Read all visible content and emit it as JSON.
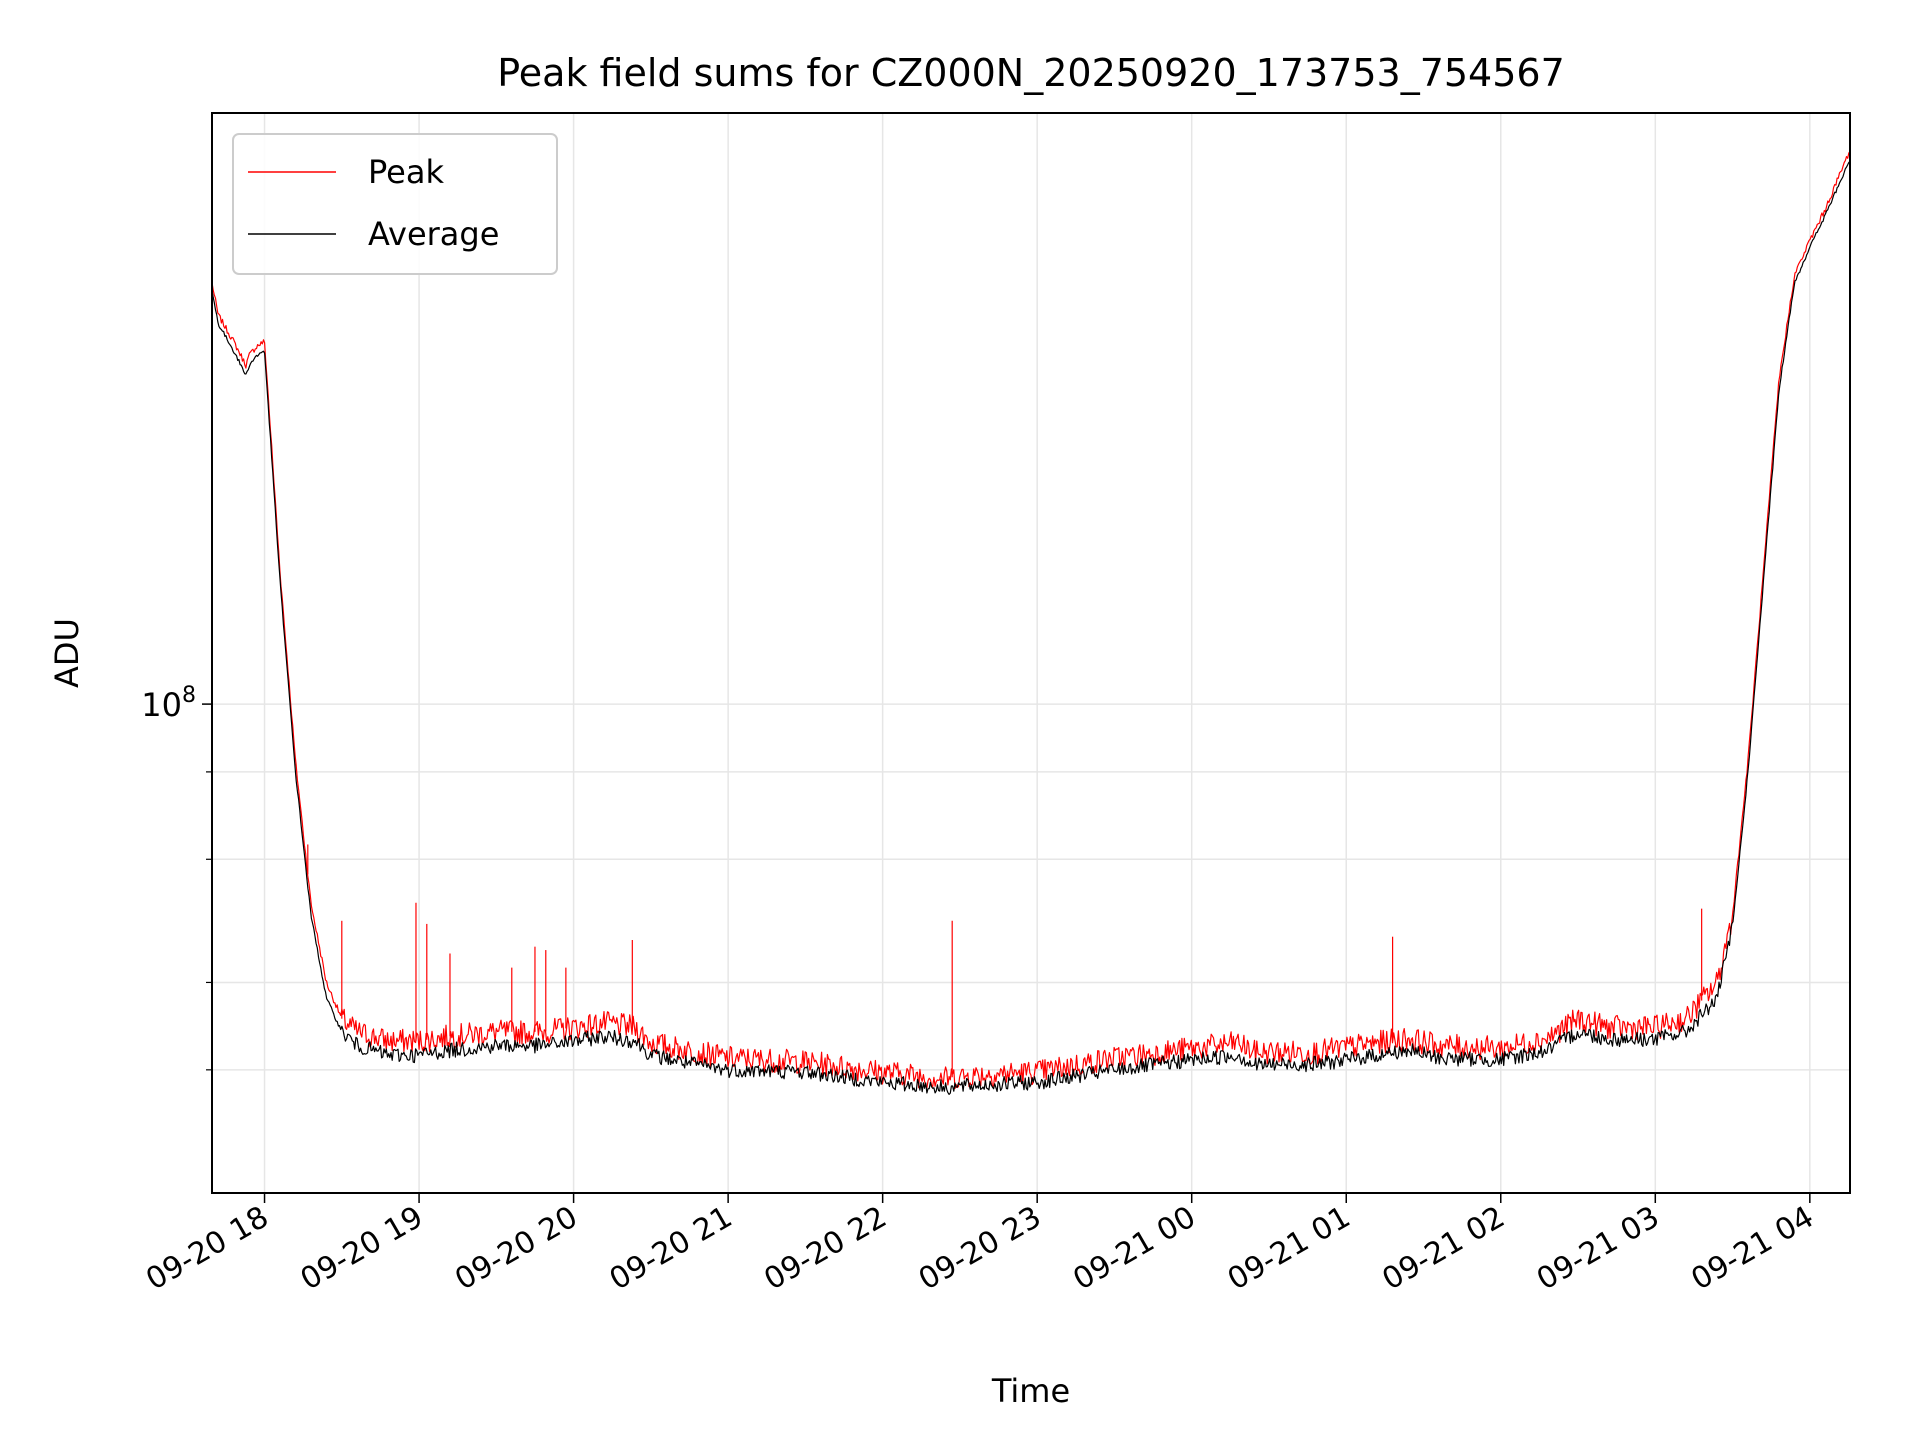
{
  "chart_data": {
    "type": "line",
    "title": "Peak field sums for CZ000N_20250920_173753_754567",
    "xlabel": "Time",
    "ylabel": "ADU",
    "yscale": "log",
    "ylim": [
      20000000,
      700000000
    ],
    "y_major_tick_label": {
      "base": "10",
      "exponent": "8",
      "value": 100000000
    },
    "y_minor_tick_values": [
      30000000,
      40000000,
      60000000,
      80000000
    ],
    "grid": true,
    "legend": {
      "position": "top-left",
      "entries": [
        {
          "name": "Peak",
          "color": "#ff0000"
        },
        {
          "name": "Average",
          "color": "#000000"
        }
      ]
    },
    "x_axis": {
      "start_hours": -0.34,
      "end_hours": 10.26,
      "tick_labels": [
        "09-20 18",
        "09-20 19",
        "09-20 20",
        "09-20 21",
        "09-20 22",
        "09-20 23",
        "09-21 00",
        "09-21 01",
        "09-21 02",
        "09-21 03",
        "09-21 04"
      ],
      "note": "x values are hours relative to 09-20 18:00"
    },
    "series": [
      {
        "name": "Average",
        "color": "#000000",
        "x_hours": [
          -0.34,
          -0.3,
          -0.2,
          -0.12,
          -0.1,
          -0.05,
          0.0,
          0.1,
          0.2,
          0.3,
          0.4,
          0.5,
          0.6,
          0.8,
          1.0,
          1.2,
          1.5,
          1.8,
          2.0,
          2.2,
          2.4,
          2.5,
          2.8,
          3.0,
          3.5,
          4.0,
          4.4,
          4.6,
          5.0,
          5.5,
          6.0,
          6.3,
          6.4,
          6.8,
          7.0,
          7.4,
          7.6,
          8.0,
          8.3,
          8.5,
          8.7,
          9.0,
          9.2,
          9.4,
          9.5,
          9.6,
          9.8,
          9.9,
          10.0,
          10.1,
          10.26
        ],
        "values": [
          390000000,
          350000000,
          320000000,
          295000000,
          305000000,
          315000000,
          320000000,
          150000000,
          80000000,
          50000000,
          38000000,
          34000000,
          32500000,
          31500000,
          31500000,
          32000000,
          32500000,
          32500000,
          33000000,
          33500000,
          33000000,
          31500000,
          30500000,
          30000000,
          29800000,
          28800000,
          28300000,
          28500000,
          28800000,
          30000000,
          31000000,
          31500000,
          30500000,
          30600000,
          31000000,
          32000000,
          31200000,
          31000000,
          32000000,
          34000000,
          33200000,
          33200000,
          34000000,
          38000000,
          48000000,
          80000000,
          280000000,
          400000000,
          450000000,
          500000000,
          600000000
        ]
      },
      {
        "name": "Peak",
        "color": "#ff0000",
        "x_hours": [
          -0.34,
          -0.3,
          -0.2,
          -0.12,
          -0.1,
          -0.05,
          0.0,
          0.1,
          0.2,
          0.3,
          0.4,
          0.5,
          0.6,
          0.8,
          1.0,
          1.2,
          1.5,
          1.8,
          2.0,
          2.2,
          2.4,
          2.5,
          2.8,
          3.0,
          3.5,
          4.0,
          4.4,
          4.6,
          5.0,
          5.5,
          6.0,
          6.3,
          6.4,
          6.8,
          7.0,
          7.4,
          7.6,
          8.0,
          8.3,
          8.5,
          8.7,
          9.0,
          9.2,
          9.4,
          9.5,
          9.6,
          9.8,
          9.9,
          10.0,
          10.1,
          10.26
        ],
        "values": [
          400000000,
          360000000,
          330000000,
          305000000,
          315000000,
          325000000,
          330000000,
          155000000,
          83000000,
          52000000,
          40000000,
          35500000,
          34000000,
          33000000,
          33000000,
          33500000,
          34000000,
          34000000,
          34500000,
          35000000,
          34500000,
          32800000,
          31800000,
          31200000,
          30800000,
          29800000,
          29200000,
          29500000,
          29800000,
          31200000,
          32200000,
          32800000,
          31800000,
          31800000,
          32300000,
          33300000,
          32500000,
          32200000,
          33300000,
          35500000,
          34500000,
          34500000,
          35500000,
          40000000,
          50000000,
          83000000,
          290000000,
          410000000,
          460000000,
          510000000,
          620000000
        ]
      },
      {
        "name": "Peak spikes",
        "color": "#ff0000",
        "x_hours": [
          0.28,
          0.5,
          0.98,
          1.05,
          1.2,
          1.6,
          1.75,
          1.82,
          1.95,
          2.38,
          4.45,
          7.3,
          9.3
        ],
        "values": [
          63000000,
          49000000,
          52000000,
          48500000,
          44000000,
          42000000,
          45000000,
          44500000,
          42000000,
          46000000,
          49000000,
          46500000,
          51000000
        ]
      }
    ]
  }
}
